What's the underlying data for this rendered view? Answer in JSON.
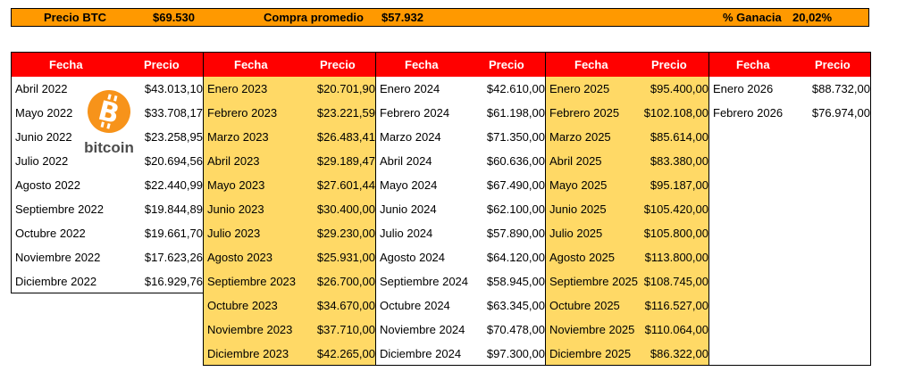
{
  "topbar": {
    "precio_label": "Precio BTC",
    "precio_value": "$69.530",
    "compra_label": "Compra promedio",
    "compra_value": "$57.932",
    "ganancia_label": "% Ganacia",
    "ganancia_value": "20,02%"
  },
  "logo": {
    "icon": "bitcoin-icon",
    "text": "bitcoin",
    "color": "#f7931a"
  },
  "colors": {
    "header": "#ff0000",
    "yellow": "#ffd966",
    "topbar": "#ff9900"
  },
  "blocks": [
    {
      "fecha": "Fecha",
      "precio": "Precio",
      "rows": [
        [
          "Abril 2022",
          "$43.013,10"
        ],
        [
          "Mayo 2022",
          "$33.708,17"
        ],
        [
          "Junio 2022",
          "$23.258,95"
        ],
        [
          "Julio 2022",
          "$20.694,56"
        ],
        [
          "Agosto 2022",
          "$22.440,99"
        ],
        [
          "Septiembre 2022",
          "$19.844,89"
        ],
        [
          "Octubre 2022",
          "$19.661,70"
        ],
        [
          "Noviembre 2022",
          "$17.623,26"
        ],
        [
          "Diciembre 2022",
          "$16.929,76"
        ]
      ]
    },
    {
      "fecha": "Fecha",
      "precio": "Precio",
      "rows": [
        [
          "Enero 2023",
          "$20.701,90"
        ],
        [
          "Febrero 2023",
          "$23.221,59"
        ],
        [
          "Marzo 2023",
          "$26.483,41"
        ],
        [
          "Abril 2023",
          "$29.189,47"
        ],
        [
          "Mayo 2023",
          "$27.601,44"
        ],
        [
          "Junio 2023",
          "$30.400,00"
        ],
        [
          "Julio 2023",
          "$29.230,00"
        ],
        [
          "Agosto 2023",
          "$25.931,00"
        ],
        [
          "Septiembre 2023",
          "$26.700,00"
        ],
        [
          "Octubre 2023",
          "$34.670,00"
        ],
        [
          "Noviembre 2023",
          "$37.710,00"
        ],
        [
          "Diciembre 2023",
          "$42.265,00"
        ]
      ]
    },
    {
      "fecha": "Fecha",
      "precio": "Precio",
      "rows": [
        [
          "Enero 2024",
          "$42.610,00"
        ],
        [
          "Febrero 2024",
          "$61.198,00"
        ],
        [
          "Marzo 2024",
          "$71.350,00"
        ],
        [
          "Abril 2024",
          "$60.636,00"
        ],
        [
          "Mayo 2024",
          "$67.490,00"
        ],
        [
          "Junio 2024",
          "$62.100,00"
        ],
        [
          "Julio 2024",
          "$57.890,00"
        ],
        [
          "Agosto 2024",
          "$64.120,00"
        ],
        [
          "Septiembre 2024",
          "$58.945,00"
        ],
        [
          "Octubre 2024",
          "$63.345,00"
        ],
        [
          "Noviembre 2024",
          "$70.478,00"
        ],
        [
          "Diciembre 2024",
          "$97.300,00"
        ]
      ]
    },
    {
      "fecha": "Fecha",
      "precio": "Precio",
      "rows": [
        [
          "Enero 2025",
          "$95.400,00"
        ],
        [
          "Febrero 2025",
          "$102.108,00"
        ],
        [
          "Marzo 2025",
          "$85.614,00"
        ],
        [
          "Abril 2025",
          "$83.380,00"
        ],
        [
          "Mayo 2025",
          "$95.187,00"
        ],
        [
          "Junio 2025",
          "$105.420,00"
        ],
        [
          "Julio 2025",
          "$105.800,00"
        ],
        [
          "Agosto 2025",
          "$113.800,00"
        ],
        [
          "Septiembre 2025",
          "$108.745,00"
        ],
        [
          "Octubre 2025",
          "$116.527,00"
        ],
        [
          "Noviembre 2025",
          "$110.064,00"
        ],
        [
          "Diciembre 2025",
          "$86.322,00"
        ]
      ]
    },
    {
      "fecha": "Fecha",
      "precio": "Precio",
      "rows": [
        [
          "Enero 2026",
          "$88.732,00"
        ],
        [
          "Febrero 2026",
          "$76.974,00"
        ]
      ]
    }
  ]
}
